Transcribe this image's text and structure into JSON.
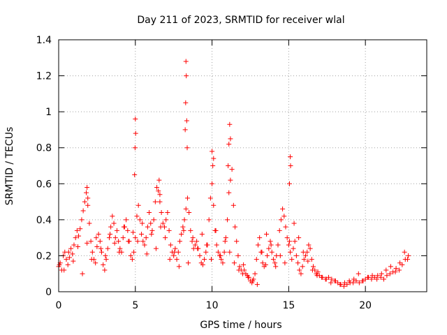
{
  "chart_data": {
    "type": "scatter",
    "title": "Day 211 of 2023, SRMTID for receiver wlal",
    "xlabel": "GPS time / hours",
    "ylabel": "SRMTID / TECUs",
    "xlim": [
      0,
      24
    ],
    "ylim": [
      0,
      1.4
    ],
    "xticks": [
      0,
      5,
      10,
      15,
      20
    ],
    "xtick_labels": [
      "0",
      "5",
      "10",
      "15",
      "20"
    ],
    "yticks": [
      0,
      0.2,
      0.4,
      0.6,
      0.8,
      1.0,
      1.2,
      1.4
    ],
    "ytick_labels": [
      "0",
      "0.2",
      "0.4",
      "0.6",
      "0.8",
      "1",
      "1.2",
      "1.4"
    ],
    "grid": true,
    "marker": "plus",
    "color": "#ff0000",
    "series": [
      {
        "name": "SRMTID",
        "x": [
          0.0,
          0.1,
          0.2,
          0.3,
          0.4,
          0.5,
          0.6,
          0.7,
          0.8,
          0.9,
          1.0,
          1.1,
          1.2,
          1.3,
          1.4,
          1.5,
          1.6,
          1.7,
          1.8,
          1.9,
          2.0,
          2.1,
          2.2,
          2.3,
          2.4,
          2.5,
          2.6,
          2.7,
          2.8,
          2.9,
          3.0,
          3.1,
          3.2,
          3.3,
          3.4,
          3.5,
          3.6,
          3.7,
          3.8,
          3.9,
          4.0,
          4.1,
          4.2,
          4.3,
          4.4,
          4.5,
          4.6,
          4.7,
          4.8,
          4.9,
          5.0,
          5.1,
          5.2,
          5.3,
          5.4,
          5.5,
          5.6,
          5.7,
          5.8,
          5.9,
          6.0,
          6.1,
          6.2,
          6.3,
          6.4,
          6.5,
          6.6,
          6.7,
          6.8,
          6.9,
          7.0,
          7.1,
          7.2,
          7.3,
          7.4,
          7.5,
          7.6,
          7.7,
          7.8,
          7.9,
          8.0,
          8.1,
          8.2,
          8.3,
          8.4,
          8.5,
          8.6,
          8.7,
          8.8,
          8.9,
          9.0,
          9.1,
          9.2,
          9.3,
          9.4,
          9.5,
          9.6,
          9.7,
          9.8,
          9.9,
          10.0,
          10.1,
          10.2,
          10.3,
          10.4,
          10.5,
          10.6,
          10.7,
          10.8,
          10.9,
          11.0,
          11.1,
          11.2,
          11.3,
          11.4,
          11.5,
          11.6,
          11.7,
          11.8,
          11.9,
          12.0,
          12.1,
          12.2,
          12.3,
          12.4,
          12.5,
          12.6,
          12.7,
          12.8,
          12.9,
          13.0,
          13.1,
          13.2,
          13.3,
          13.4,
          13.5,
          13.6,
          13.7,
          13.8,
          13.9,
          14.0,
          14.1,
          14.2,
          14.3,
          14.4,
          14.5,
          14.6,
          14.7,
          14.8,
          14.9,
          15.0,
          15.1,
          15.2,
          15.3,
          15.4,
          15.5,
          15.6,
          15.7,
          15.8,
          15.9,
          16.0,
          16.1,
          16.2,
          16.3,
          16.4,
          16.5,
          16.6,
          16.7,
          16.8,
          16.9,
          17.0,
          17.2,
          17.4,
          17.6,
          17.8,
          18.0,
          18.2,
          18.4,
          18.6,
          18.8,
          19.0,
          19.2,
          19.4,
          19.6,
          19.8,
          20.0,
          20.2,
          20.4,
          20.6,
          20.8,
          21.0,
          21.2,
          21.4,
          21.6,
          21.8,
          22.0,
          22.2,
          22.4,
          22.6,
          22.8,
          0.05,
          0.35,
          0.65,
          0.95,
          1.25,
          1.55,
          1.85,
          2.15,
          2.45,
          2.75,
          3.05,
          3.35,
          3.65,
          3.95,
          4.25,
          4.55,
          4.85,
          5.15,
          5.45,
          5.75,
          6.05,
          6.35,
          6.65,
          6.95,
          7.25,
          7.55,
          7.85,
          8.15,
          8.45,
          8.75,
          9.05,
          9.35,
          9.65,
          9.95,
          10.25,
          10.55,
          10.85,
          11.15,
          11.45,
          11.75,
          12.05,
          12.35,
          12.65,
          12.95,
          13.25,
          13.55,
          13.85,
          14.15,
          14.45,
          14.75,
          15.05,
          15.35,
          15.65,
          15.95,
          16.25,
          16.55,
          16.85,
          17.15,
          17.45,
          17.75,
          18.05,
          18.35,
          18.65,
          18.95,
          19.25,
          19.55,
          19.85,
          20.15,
          20.45,
          20.75,
          21.05,
          21.35,
          21.65,
          21.95,
          22.25,
          22.55,
          22.75,
          4.95,
          4.98,
          5.0,
          5.02,
          8.25,
          8.28,
          8.3,
          8.32,
          8.35,
          8.38,
          11.05,
          11.1,
          11.15,
          11.2,
          15.05,
          15.1,
          15.12,
          1.85,
          1.9,
          6.55,
          6.6,
          10.0,
          10.05,
          10.1
        ],
        "y": [
          0.14,
          0.16,
          0.12,
          0.2,
          0.22,
          0.18,
          0.15,
          0.19,
          0.24,
          0.21,
          0.26,
          0.3,
          0.34,
          0.31,
          0.35,
          0.4,
          0.45,
          0.5,
          0.55,
          0.48,
          0.38,
          0.28,
          0.22,
          0.18,
          0.16,
          0.25,
          0.32,
          0.28,
          0.22,
          0.15,
          0.12,
          0.18,
          0.24,
          0.3,
          0.36,
          0.42,
          0.38,
          0.3,
          0.34,
          0.28,
          0.24,
          0.22,
          0.3,
          0.36,
          0.4,
          0.34,
          0.28,
          0.2,
          0.18,
          0.22,
          0.3,
          0.42,
          0.48,
          0.4,
          0.32,
          0.28,
          0.26,
          0.3,
          0.36,
          0.44,
          0.38,
          0.34,
          0.4,
          0.5,
          0.58,
          0.56,
          0.5,
          0.44,
          0.38,
          0.36,
          0.4,
          0.44,
          0.34,
          0.26,
          0.22,
          0.2,
          0.24,
          0.18,
          0.22,
          0.28,
          0.32,
          0.36,
          0.4,
          0.46,
          0.52,
          0.44,
          0.34,
          0.28,
          0.24,
          0.26,
          0.28,
          0.24,
          0.2,
          0.16,
          0.15,
          0.18,
          0.22,
          0.26,
          0.4,
          0.52,
          0.6,
          0.48,
          0.34,
          0.26,
          0.22,
          0.2,
          0.18,
          0.16,
          0.22,
          0.3,
          0.4,
          0.55,
          0.62,
          0.68,
          0.48,
          0.36,
          0.28,
          0.2,
          0.14,
          0.12,
          0.1,
          0.12,
          0.1,
          0.09,
          0.08,
          0.06,
          0.05,
          0.07,
          0.1,
          0.18,
          0.26,
          0.3,
          0.22,
          0.16,
          0.14,
          0.15,
          0.2,
          0.24,
          0.28,
          0.22,
          0.18,
          0.16,
          0.2,
          0.26,
          0.34,
          0.4,
          0.46,
          0.42,
          0.36,
          0.3,
          0.26,
          0.22,
          0.18,
          0.24,
          0.28,
          0.2,
          0.16,
          0.12,
          0.1,
          0.14,
          0.18,
          0.2,
          0.22,
          0.26,
          0.24,
          0.18,
          0.14,
          0.12,
          0.1,
          0.11,
          0.09,
          0.08,
          0.07,
          0.08,
          0.07,
          0.06,
          0.05,
          0.04,
          0.03,
          0.04,
          0.05,
          0.05,
          0.06,
          0.05,
          0.06,
          0.07,
          0.08,
          0.07,
          0.08,
          0.09,
          0.08,
          0.07,
          0.09,
          0.1,
          0.11,
          0.13,
          0.12,
          0.15,
          0.18,
          0.2,
          0.15,
          0.12,
          0.22,
          0.17,
          0.25,
          0.1,
          0.27,
          0.18,
          0.3,
          0.24,
          0.2,
          0.32,
          0.27,
          0.22,
          0.36,
          0.28,
          0.33,
          0.28,
          0.38,
          0.21,
          0.32,
          0.24,
          0.36,
          0.3,
          0.18,
          0.22,
          0.14,
          0.34,
          0.16,
          0.3,
          0.24,
          0.32,
          0.26,
          0.18,
          0.34,
          0.2,
          0.28,
          0.22,
          0.16,
          0.12,
          0.15,
          0.08,
          0.06,
          0.04,
          0.22,
          0.32,
          0.26,
          0.14,
          0.2,
          0.16,
          0.28,
          0.38,
          0.3,
          0.22,
          0.17,
          0.12,
          0.09,
          0.08,
          0.07,
          0.05,
          0.06,
          0.04,
          0.05,
          0.06,
          0.07,
          0.1,
          0.06,
          0.08,
          0.09,
          0.07,
          0.1,
          0.12,
          0.14,
          0.11,
          0.16,
          0.22,
          0.18,
          0.65,
          0.8,
          0.96,
          0.88,
          0.9,
          1.05,
          1.28,
          1.2,
          0.95,
          0.8,
          0.7,
          0.82,
          0.93,
          0.85,
          0.6,
          0.75,
          0.7,
          0.58,
          0.52,
          0.62,
          0.54,
          0.78,
          0.7,
          0.74
        ]
      }
    ]
  }
}
